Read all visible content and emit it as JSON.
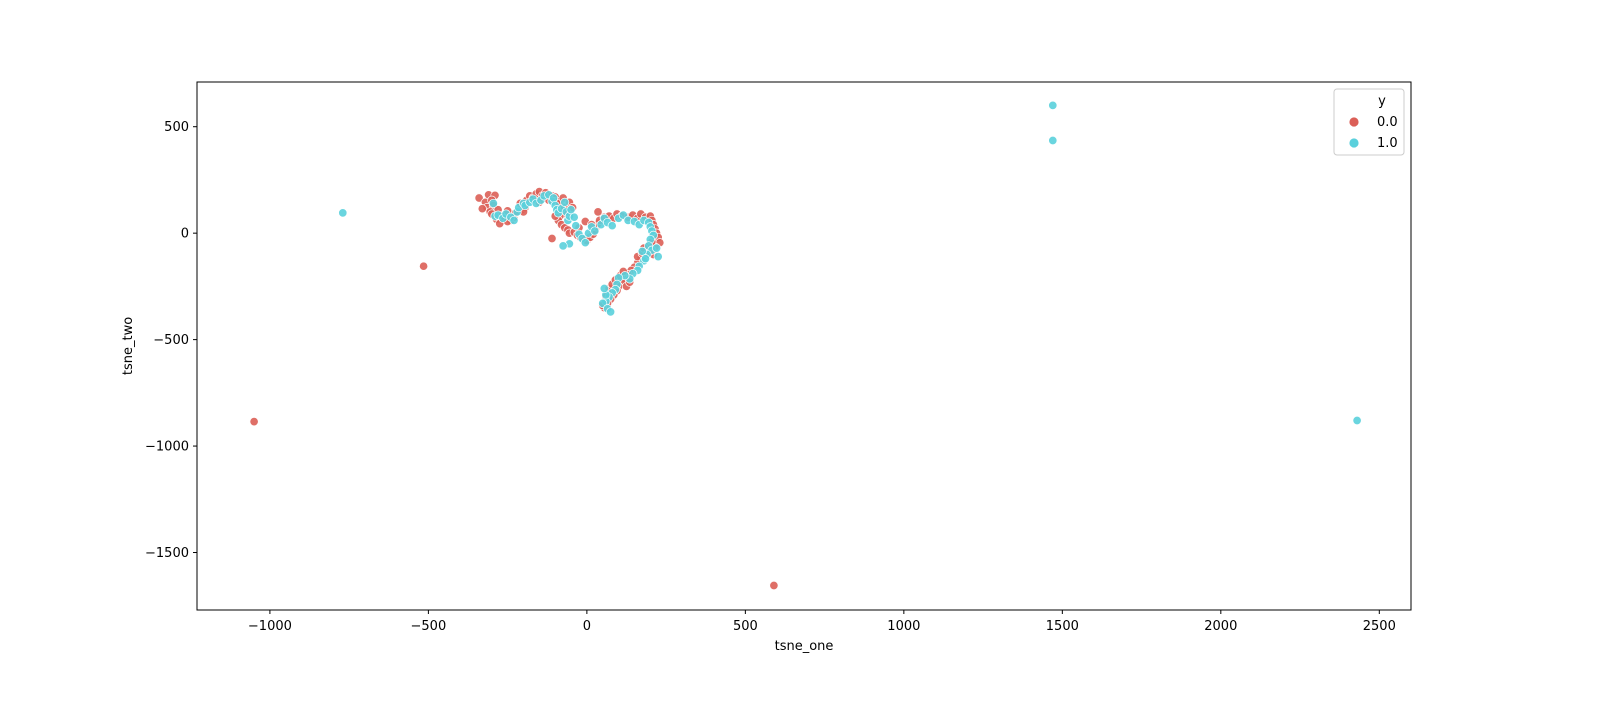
{
  "chart_data": {
    "type": "scatter",
    "title": "",
    "xlabel": "tsne_one",
    "ylabel": "tsne_two",
    "xlim": [
      -1230,
      2600
    ],
    "ylim": [
      -1770,
      710
    ],
    "xticks": [
      -1000,
      -500,
      0,
      500,
      1000,
      1500,
      2000,
      2500
    ],
    "xtick_labels": [
      "−1000",
      "−500",
      "0",
      "500",
      "1000",
      "1500",
      "2000",
      "2500"
    ],
    "yticks": [
      500,
      0,
      -500,
      -1000,
      -1500
    ],
    "ytick_labels": [
      "500",
      "0",
      "−500",
      "−1000",
      "−1500"
    ],
    "grid": false,
    "legend": {
      "title": "y",
      "placement": "top-right",
      "entries": [
        "0.0",
        "1.0"
      ]
    },
    "series": [
      {
        "name": "0.0",
        "color": "#db5f57",
        "points": [
          [
            -1050,
            -885
          ],
          [
            -515,
            -155
          ],
          [
            590,
            -1655
          ],
          [
            -110,
            -25
          ],
          [
            -340,
            165
          ],
          [
            -310,
            180
          ],
          [
            -290,
            178
          ],
          [
            -320,
            145
          ],
          [
            -300,
            155
          ],
          [
            -315,
            120
          ],
          [
            -295,
            130
          ],
          [
            -330,
            115
          ],
          [
            -305,
            100
          ],
          [
            -280,
            110
          ],
          [
            -270,
            80
          ],
          [
            -285,
            65
          ],
          [
            -260,
            70
          ],
          [
            -240,
            60
          ],
          [
            -230,
            75
          ],
          [
            -275,
            45
          ],
          [
            -250,
            55
          ],
          [
            -225,
            95
          ],
          [
            -205,
            110
          ],
          [
            -195,
            120
          ],
          [
            -210,
            140
          ],
          [
            -190,
            155
          ],
          [
            -180,
            175
          ],
          [
            -170,
            165
          ],
          [
            -160,
            185
          ],
          [
            -150,
            195
          ],
          [
            -140,
            175
          ],
          [
            -130,
            190
          ],
          [
            -120,
            155
          ],
          [
            -110,
            175
          ],
          [
            -100,
            170
          ],
          [
            -95,
            150
          ],
          [
            -85,
            140
          ],
          [
            -75,
            165
          ],
          [
            -70,
            120
          ],
          [
            -60,
            110
          ],
          [
            -55,
            145
          ],
          [
            -45,
            120
          ],
          [
            -65,
            90
          ],
          [
            -85,
            80
          ],
          [
            -90,
            60
          ],
          [
            -80,
            40
          ],
          [
            -70,
            25
          ],
          [
            -60,
            15
          ],
          [
            -55,
            0
          ],
          [
            -40,
            5
          ],
          [
            -30,
            -10
          ],
          [
            -20,
            -20
          ],
          [
            -10,
            -30
          ],
          [
            0,
            -35
          ],
          [
            10,
            -20
          ],
          [
            20,
            -5
          ],
          [
            25,
            15
          ],
          [
            30,
            30
          ],
          [
            35,
            45
          ],
          [
            40,
            60
          ],
          [
            55,
            75
          ],
          [
            70,
            80
          ],
          [
            85,
            70
          ],
          [
            95,
            90
          ],
          [
            110,
            80
          ],
          [
            130,
            75
          ],
          [
            145,
            85
          ],
          [
            160,
            70
          ],
          [
            170,
            90
          ],
          [
            185,
            75
          ],
          [
            200,
            80
          ],
          [
            205,
            60
          ],
          [
            210,
            40
          ],
          [
            215,
            20
          ],
          [
            220,
            0
          ],
          [
            225,
            -20
          ],
          [
            230,
            -45
          ],
          [
            215,
            -65
          ],
          [
            200,
            -85
          ],
          [
            185,
            -105
          ],
          [
            170,
            -120
          ],
          [
            160,
            -140
          ],
          [
            150,
            -160
          ],
          [
            140,
            -175
          ],
          [
            130,
            -195
          ],
          [
            120,
            -215
          ],
          [
            110,
            -230
          ],
          [
            100,
            -250
          ],
          [
            95,
            -270
          ],
          [
            85,
            -290
          ],
          [
            75,
            -310
          ],
          [
            65,
            -330
          ],
          [
            55,
            -350
          ],
          [
            50,
            -340
          ],
          [
            60,
            -300
          ],
          [
            70,
            -260
          ],
          [
            80,
            -240
          ],
          [
            90,
            -220
          ],
          [
            105,
            -200
          ],
          [
            115,
            -180
          ],
          [
            125,
            -250
          ],
          [
            135,
            -230
          ],
          [
            160,
            -110
          ],
          [
            175,
            -95
          ],
          [
            195,
            -60
          ],
          [
            205,
            -40
          ],
          [
            210,
            -100
          ],
          [
            180,
            -70
          ],
          [
            35,
            100
          ],
          [
            -5,
            55
          ],
          [
            15,
            40
          ],
          [
            -25,
            25
          ],
          [
            -100,
            80
          ],
          [
            -150,
            145
          ],
          [
            -200,
            100
          ],
          [
            -250,
            105
          ],
          [
            -300,
            90
          ]
        ]
      },
      {
        "name": "1.0",
        "color": "#5ad0dc",
        "points": [
          [
            -770,
            95
          ],
          [
            1470,
            600
          ],
          [
            1470,
            435
          ],
          [
            2430,
            -880
          ],
          [
            -295,
            140
          ],
          [
            -290,
            80
          ],
          [
            -280,
            85
          ],
          [
            -265,
            70
          ],
          [
            -255,
            90
          ],
          [
            -240,
            75
          ],
          [
            -230,
            60
          ],
          [
            -220,
            100
          ],
          [
            -215,
            120
          ],
          [
            -200,
            140
          ],
          [
            -195,
            130
          ],
          [
            -180,
            145
          ],
          [
            -170,
            160
          ],
          [
            -160,
            140
          ],
          [
            -145,
            155
          ],
          [
            -135,
            175
          ],
          [
            -120,
            180
          ],
          [
            -110,
            150
          ],
          [
            -105,
            165
          ],
          [
            -100,
            130
          ],
          [
            -95,
            110
          ],
          [
            -90,
            95
          ],
          [
            -80,
            115
          ],
          [
            -70,
            145
          ],
          [
            -65,
            100
          ],
          [
            -60,
            60
          ],
          [
            -55,
            80
          ],
          [
            -50,
            110
          ],
          [
            -40,
            75
          ],
          [
            -35,
            35
          ],
          [
            -25,
            -5
          ],
          [
            -15,
            -25
          ],
          [
            -5,
            -45
          ],
          [
            5,
            0
          ],
          [
            15,
            30
          ],
          [
            25,
            10
          ],
          [
            45,
            40
          ],
          [
            55,
            70
          ],
          [
            65,
            50
          ],
          [
            80,
            35
          ],
          [
            100,
            70
          ],
          [
            115,
            85
          ],
          [
            130,
            60
          ],
          [
            150,
            55
          ],
          [
            165,
            40
          ],
          [
            180,
            60
          ],
          [
            195,
            50
          ],
          [
            200,
            30
          ],
          [
            205,
            10
          ],
          [
            210,
            -10
          ],
          [
            200,
            -30
          ],
          [
            195,
            -60
          ],
          [
            205,
            -80
          ],
          [
            190,
            -100
          ],
          [
            180,
            -130
          ],
          [
            165,
            -155
          ],
          [
            160,
            -175
          ],
          [
            145,
            -190
          ],
          [
            135,
            -215
          ],
          [
            120,
            -200
          ],
          [
            100,
            -210
          ],
          [
            95,
            -240
          ],
          [
            90,
            -265
          ],
          [
            80,
            -280
          ],
          [
            70,
            -300
          ],
          [
            60,
            -320
          ],
          [
            50,
            -330
          ],
          [
            65,
            -355
          ],
          [
            75,
            -370
          ],
          [
            60,
            -290
          ],
          [
            55,
            -260
          ],
          [
            -55,
            -50
          ],
          [
            -75,
            -60
          ],
          [
            175,
            -85
          ],
          [
            185,
            -120
          ],
          [
            220,
            -70
          ],
          [
            225,
            -110
          ]
        ]
      }
    ]
  }
}
